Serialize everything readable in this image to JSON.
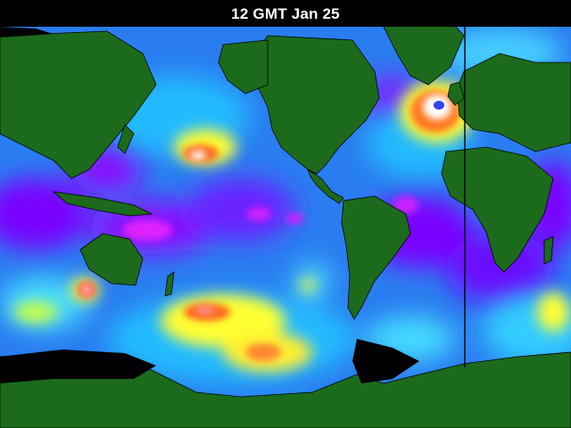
{
  "map": {
    "title": "12 GMT Jan 25",
    "colors": {
      "ocean_base": "#2a7df0",
      "land": "#1c6b1c",
      "land_border": "#000000",
      "no_data": "#000000",
      "seam_line": "#000000"
    },
    "scale_colors": [
      "#7a00ff",
      "#cc22ff",
      "#0040ff",
      "#2a7df0",
      "#22bbff",
      "#44ffff",
      "#ffff33",
      "#ff9900",
      "#ff2222",
      "#ffffff"
    ]
  }
}
